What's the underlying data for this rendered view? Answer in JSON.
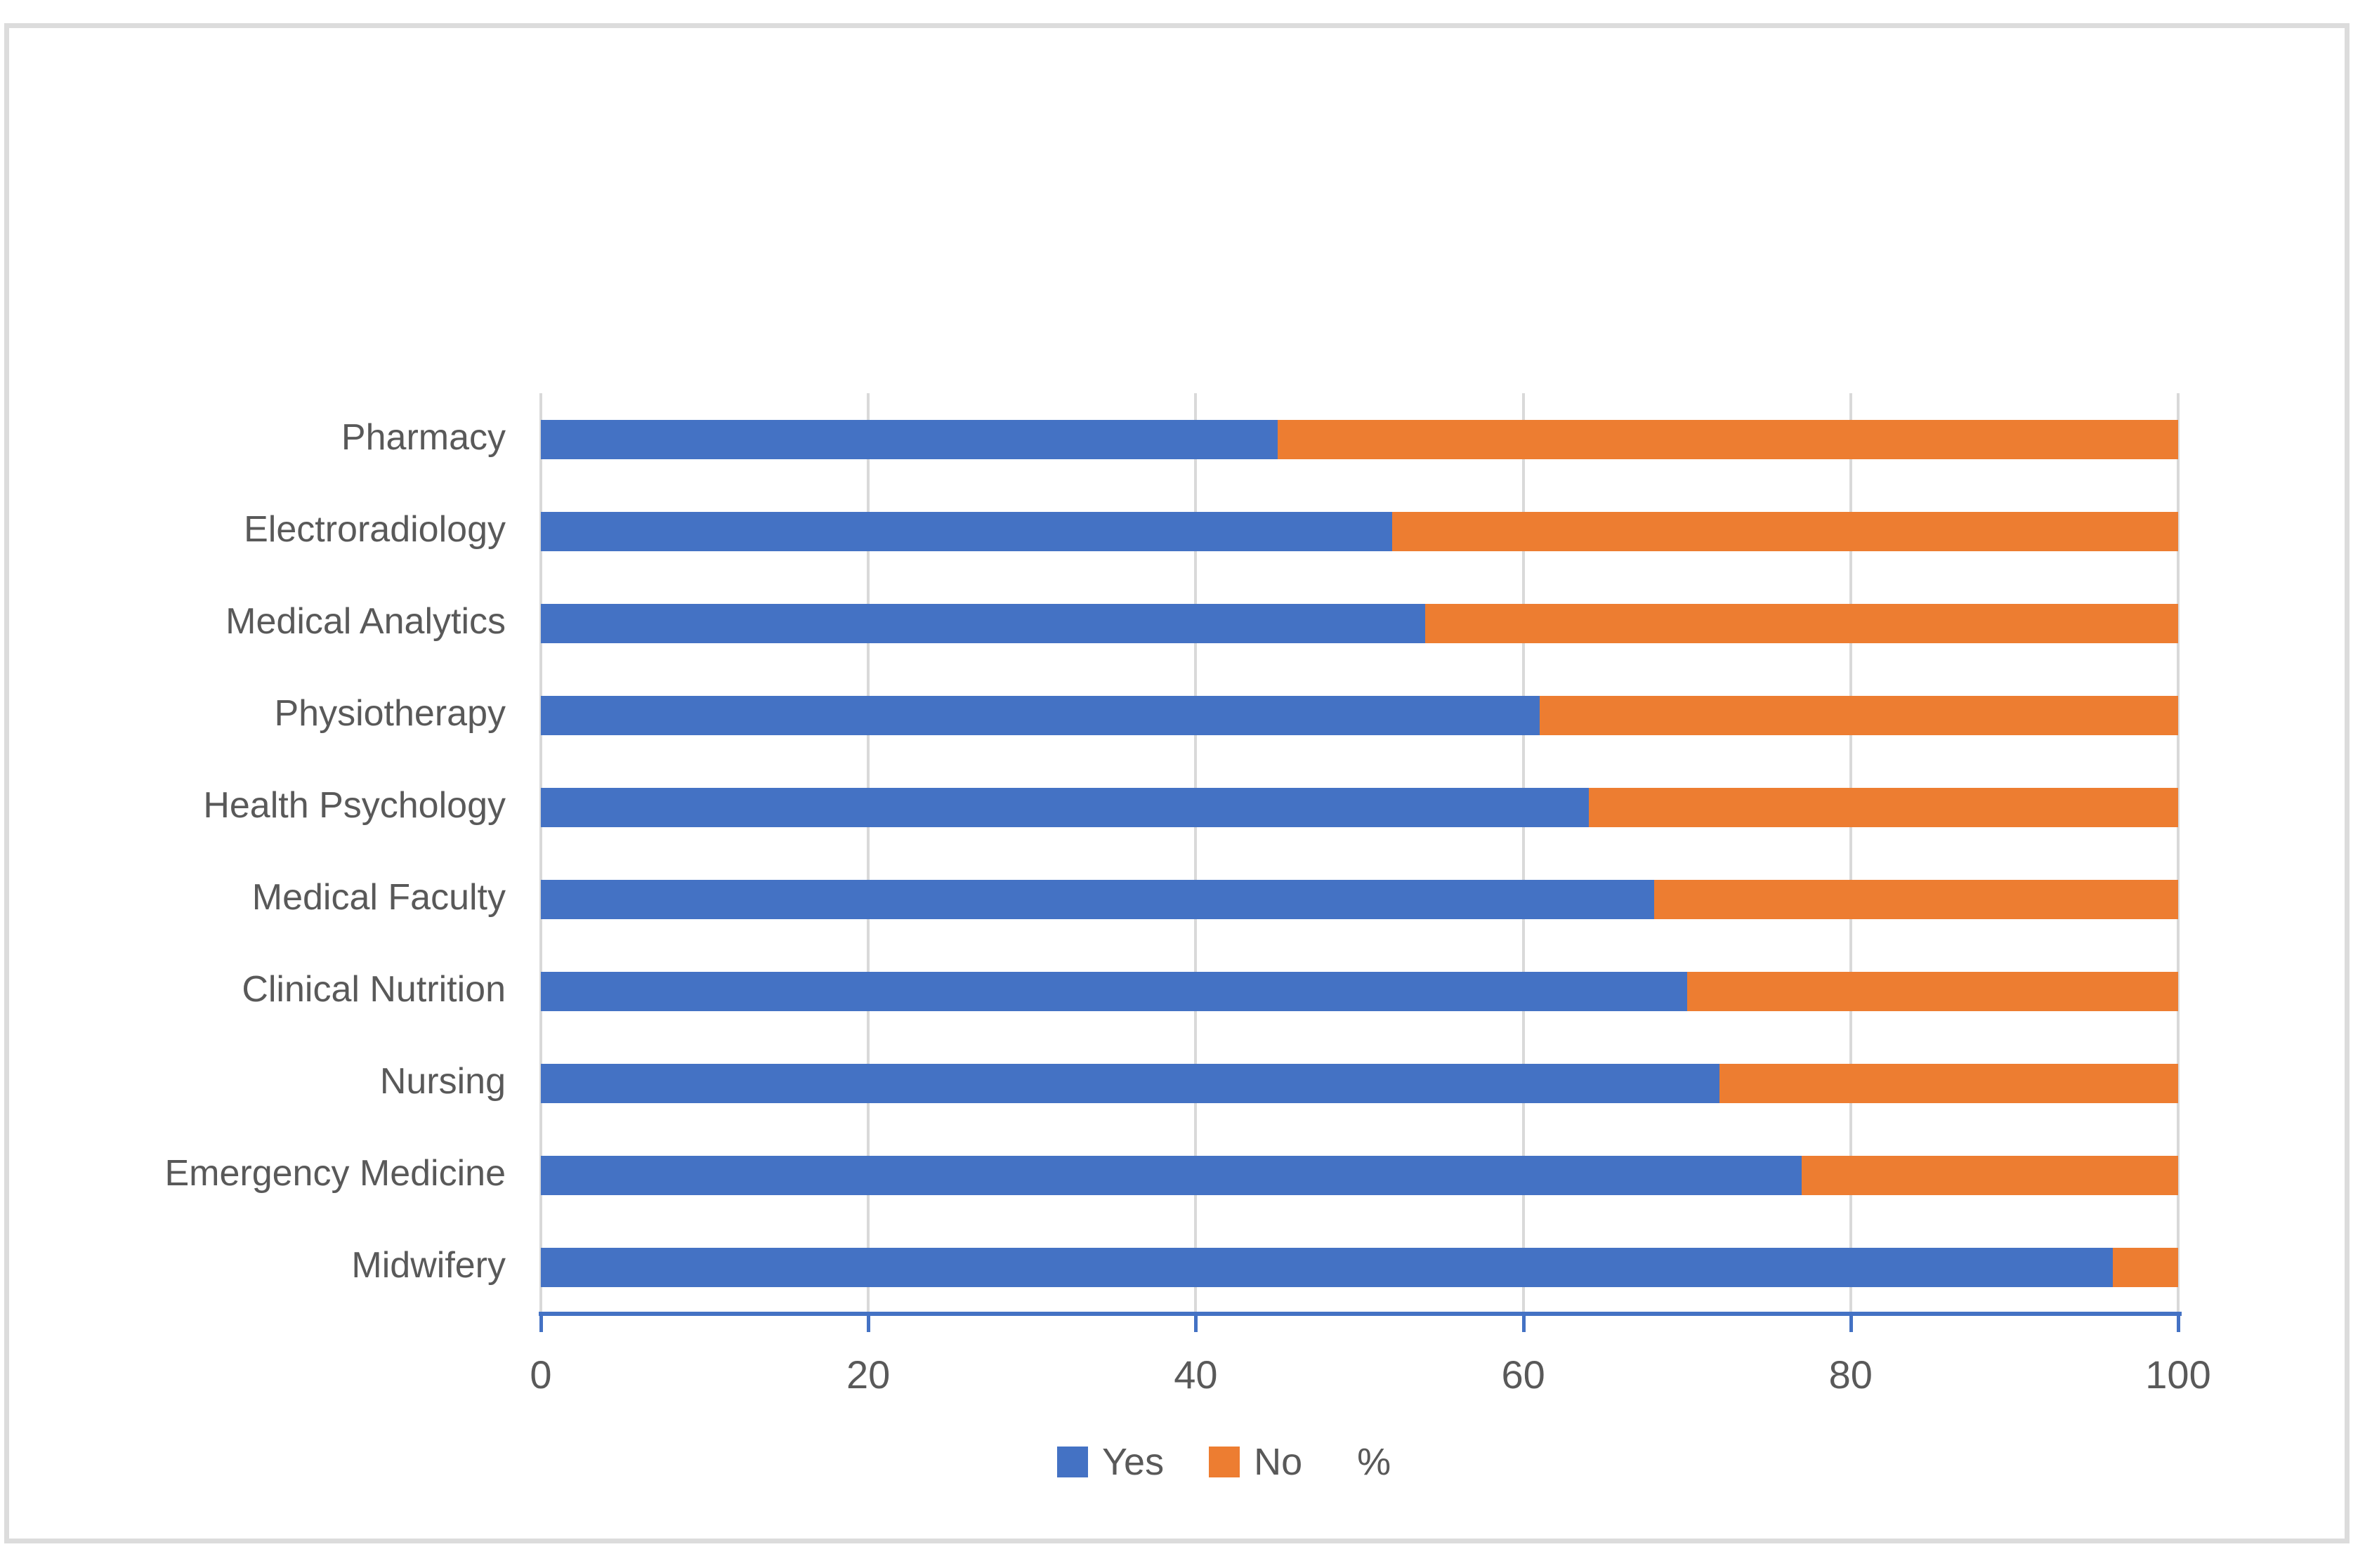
{
  "chart_data": {
    "type": "bar",
    "orientation": "horizontal",
    "stacked": true,
    "title": "",
    "xlabel": "%",
    "ylabel": "",
    "categories": [
      "Pharmacy",
      "Electroradiology",
      "Medical Analytics",
      "Physiotherapy",
      "Health Psychology",
      "Medical Faculty",
      "Clinical Nutrition",
      "Nursing",
      "Emergency Medicine",
      "Midwifery"
    ],
    "series": [
      {
        "name": "Yes",
        "color": "#4472C4",
        "values": [
          45,
          52,
          54,
          61,
          64,
          68,
          70,
          72,
          77,
          96
        ]
      },
      {
        "name": "No",
        "color": "#ED7D31",
        "values": [
          55,
          48,
          46,
          39,
          36,
          32,
          30,
          28,
          23,
          4
        ]
      }
    ],
    "xlim": [
      0,
      100
    ],
    "x_ticks": [
      0,
      20,
      40,
      60,
      80,
      100
    ],
    "grid": true,
    "legend_position": "bottom",
    "styles": {
      "axis_line_color": "#4472C4",
      "gridline_color": "#D9D9D9",
      "text_color": "#595959",
      "frame_border_color": "#DCDCDC",
      "background": "#FFFFFF"
    }
  }
}
